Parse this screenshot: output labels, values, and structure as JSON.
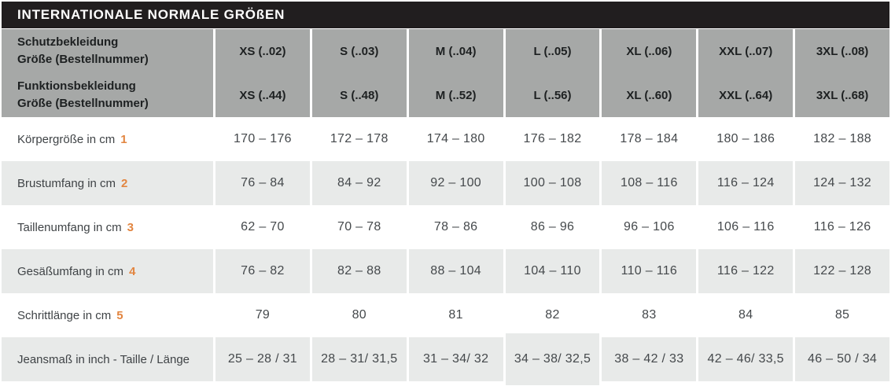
{
  "title": "INTERNATIONALE NORMALE GRÖßEN",
  "colors": {
    "title_bar_bg": "#211e1f",
    "header_bg": "#a6a8a7",
    "row_alt_bg": "#e8eae9",
    "accent_orange": "#e28540"
  },
  "header": {
    "rows": [
      {
        "label_line1": "Schutzbekleidung",
        "label_line2": "Größe (Bestellnummer)",
        "sizes": [
          "XS (..02)",
          "S (..03)",
          "M (..04)",
          "L (..05)",
          "XL (..06)",
          "XXL (..07)",
          "3XL (..08)"
        ]
      },
      {
        "label_line1": "Funktionsbekleidung",
        "label_line2": "Größe (Bestellnummer)",
        "sizes": [
          "XS (..44)",
          "S (..48)",
          "M (..52)",
          "L (..56)",
          "XL (..60)",
          "XXL (..64)",
          "3XL (..68)"
        ]
      }
    ]
  },
  "rows": [
    {
      "label": "Körpergröße in cm",
      "footnote": "1",
      "values": [
        "170 – 176",
        "172 – 178",
        "174 – 180",
        "176 – 182",
        "178 – 184",
        "180 – 186",
        "182 – 188"
      ]
    },
    {
      "label": "Brustumfang in cm",
      "footnote": "2",
      "values": [
        "76 – 84",
        "84 – 92",
        "92 – 100",
        "100 – 108",
        "108 – 116",
        "116 – 124",
        "124 – 132"
      ]
    },
    {
      "label": "Taillenumfang in cm",
      "footnote": "3",
      "values": [
        "62 – 70",
        "70 – 78",
        "78 – 86",
        "86 – 96",
        "96 – 106",
        "106 – 116",
        "116 – 126"
      ]
    },
    {
      "label": "Gesäßumfang in cm",
      "footnote": "4",
      "values": [
        "76 – 82",
        "82 – 88",
        "88 – 104",
        "104 – 110",
        "110 – 116",
        "116 – 122",
        "122 – 128"
      ]
    },
    {
      "label": "Schrittlänge in cm",
      "footnote": "5",
      "values": [
        "79",
        "80",
        "81",
        "82",
        "83",
        "84",
        "85"
      ]
    },
    {
      "label": "Jeansmaß in inch - Taille / Länge",
      "footnote": "",
      "values": [
        "25 – 28 / 31",
        "28 – 31/ 31,5",
        "31 – 34/ 32",
        "34 – 38/ 32,5",
        "38 – 42 / 33",
        "42 – 46/ 33,5",
        "46 – 50 / 34"
      ]
    }
  ]
}
